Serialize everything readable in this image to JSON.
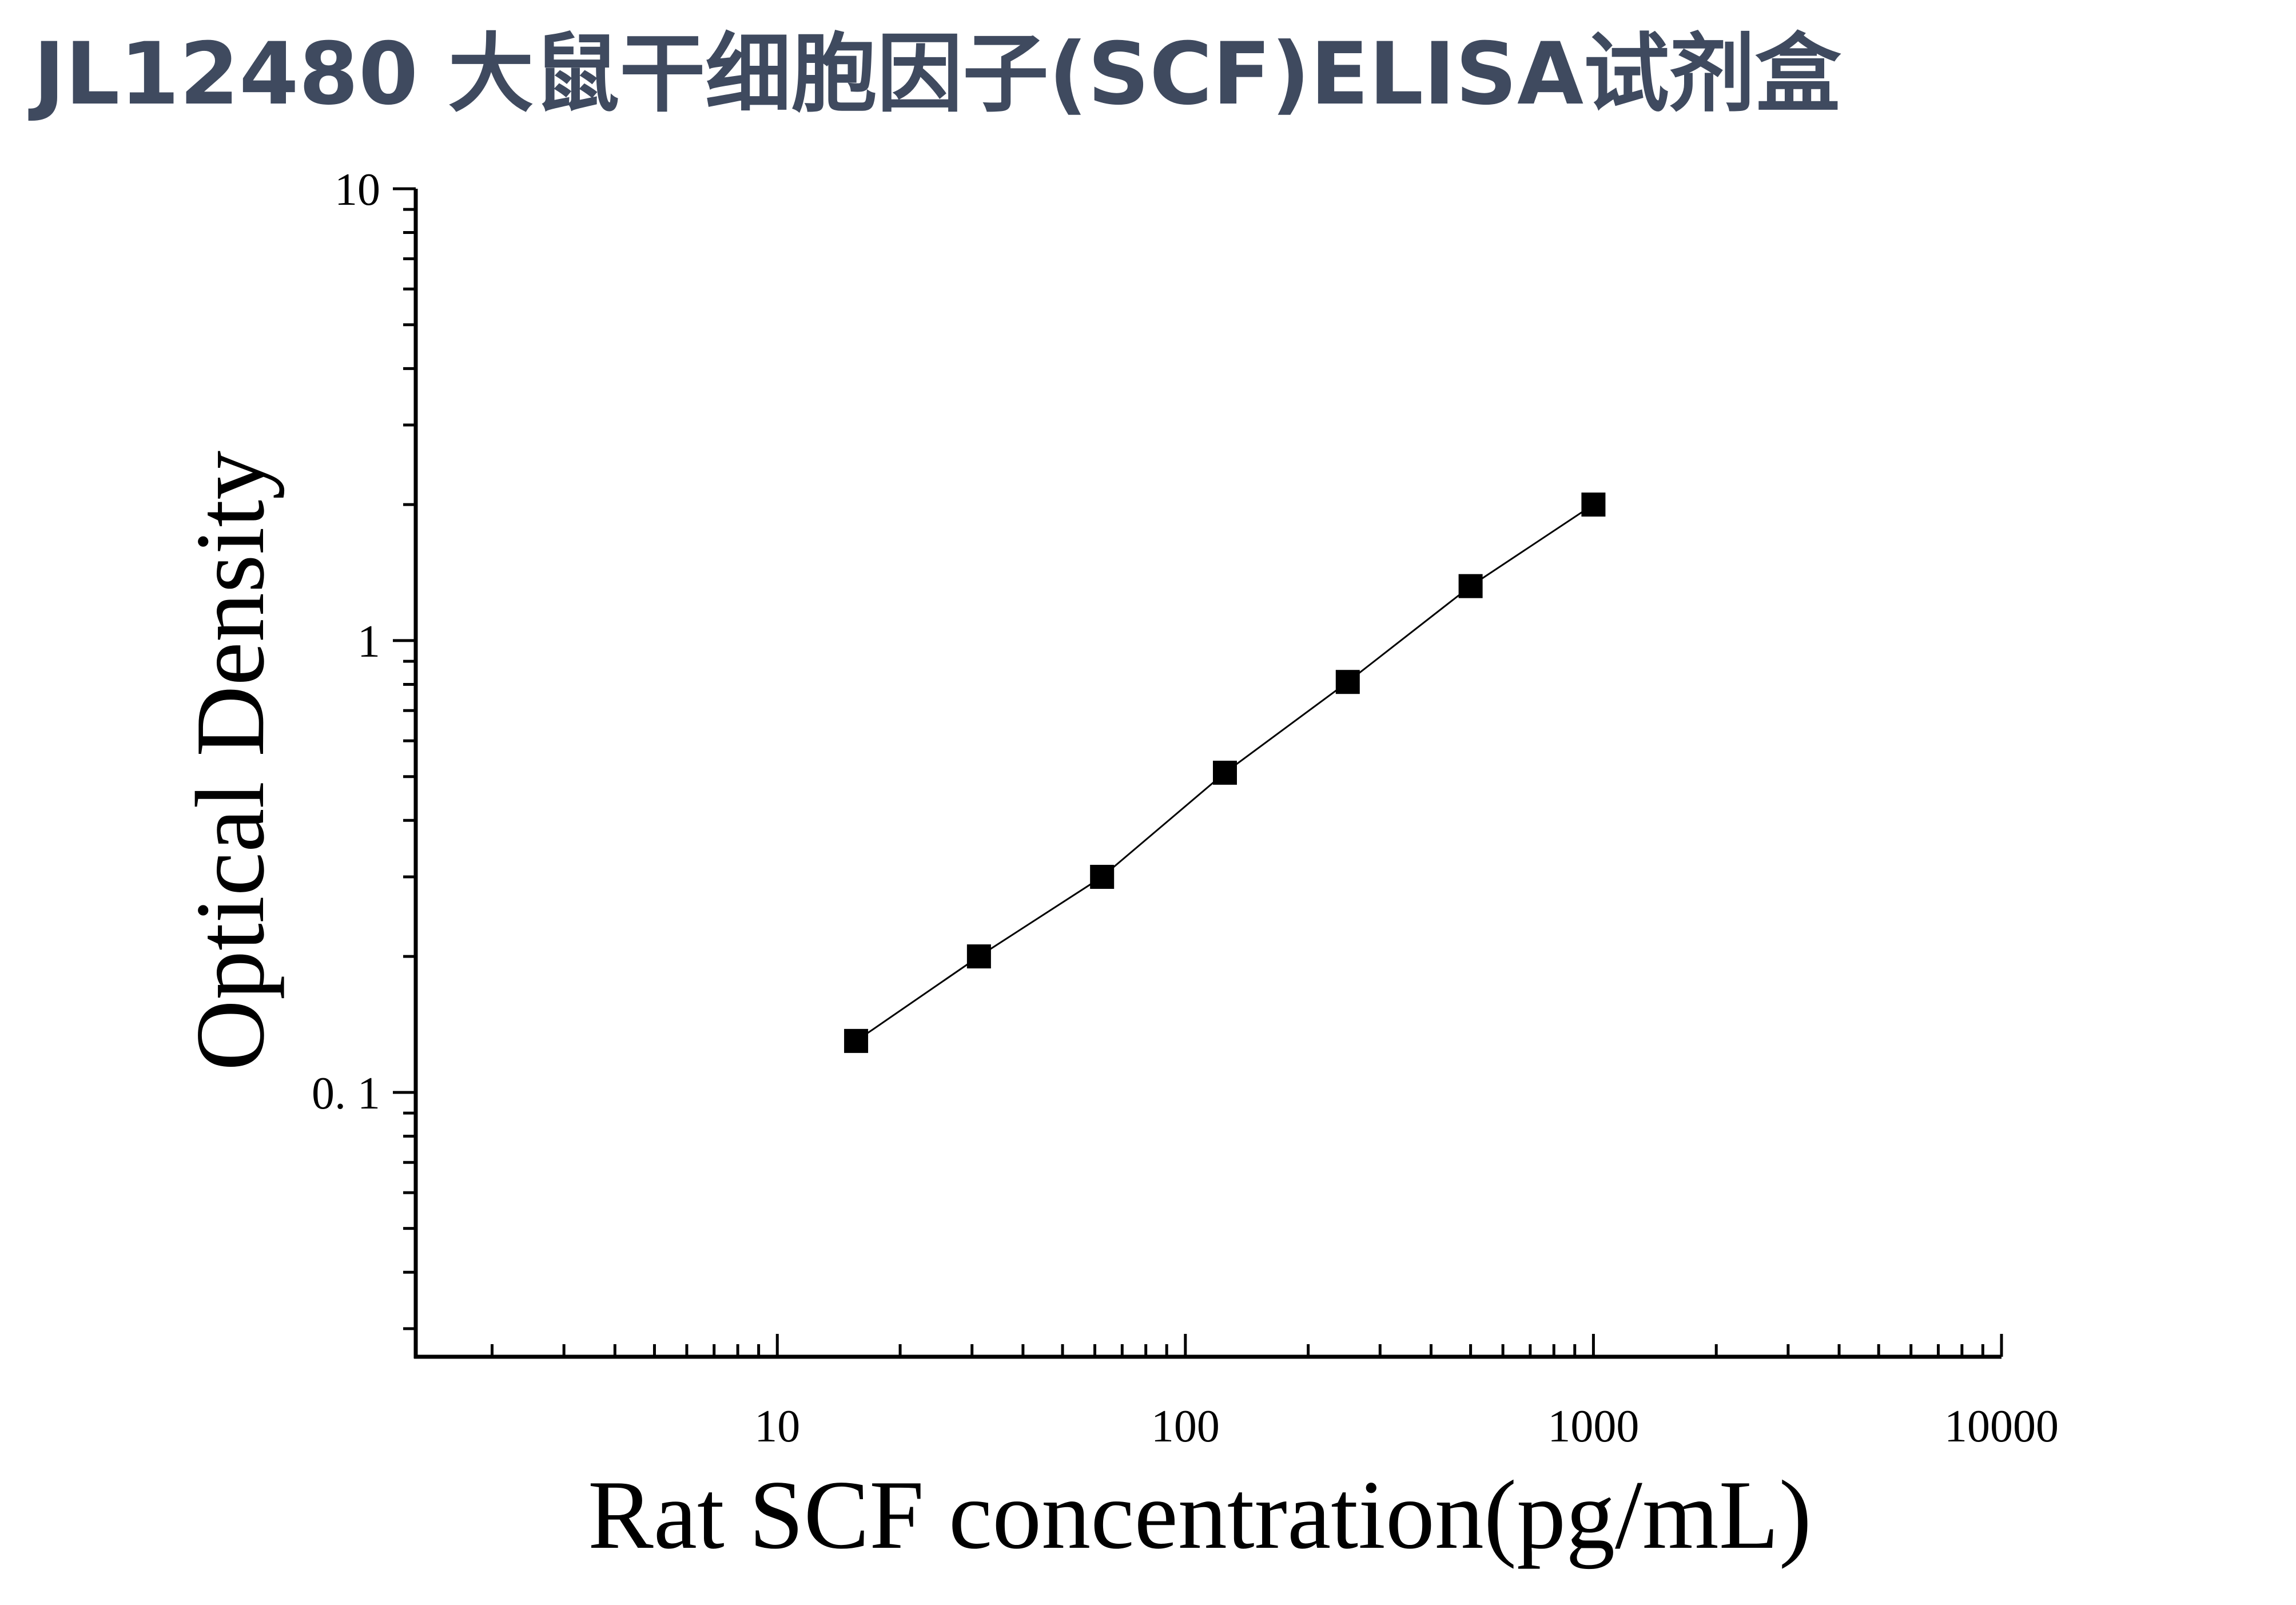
{
  "page": {
    "title": "JL12480 大鼠干细胞因子(SCF)ELISA试剂盒"
  },
  "colors": {
    "title": "#3f4a5f",
    "axis": "#000000",
    "marker": "#000000"
  },
  "chart_data": {
    "type": "scatter",
    "xlabel": "Rat SCF concentration(pg/mL)",
    "ylabel": "Optical Density",
    "x_scale": "log",
    "y_scale": "log",
    "xlim": [
      1.3,
      10000
    ],
    "ylim": [
      0.026,
      10
    ],
    "x_ticks": [
      {
        "value": 10,
        "label": "10"
      },
      {
        "value": 100,
        "label": "100"
      },
      {
        "value": 1000,
        "label": "1000"
      },
      {
        "value": 10000,
        "label": "10000"
      }
    ],
    "y_ticks": [
      {
        "value": 0.1,
        "label": "0. 1"
      },
      {
        "value": 1,
        "label": "1"
      },
      {
        "value": 10,
        "label": "10"
      }
    ],
    "marker": "square",
    "fit_line": true,
    "grid": false,
    "series": [
      {
        "points": [
          {
            "x": 15.6,
            "y": 0.13
          },
          {
            "x": 31.2,
            "y": 0.2
          },
          {
            "x": 62.5,
            "y": 0.3
          },
          {
            "x": 125,
            "y": 0.51
          },
          {
            "x": 250,
            "y": 0.81
          },
          {
            "x": 500,
            "y": 1.32
          },
          {
            "x": 1000,
            "y": 2.0
          }
        ]
      }
    ]
  }
}
